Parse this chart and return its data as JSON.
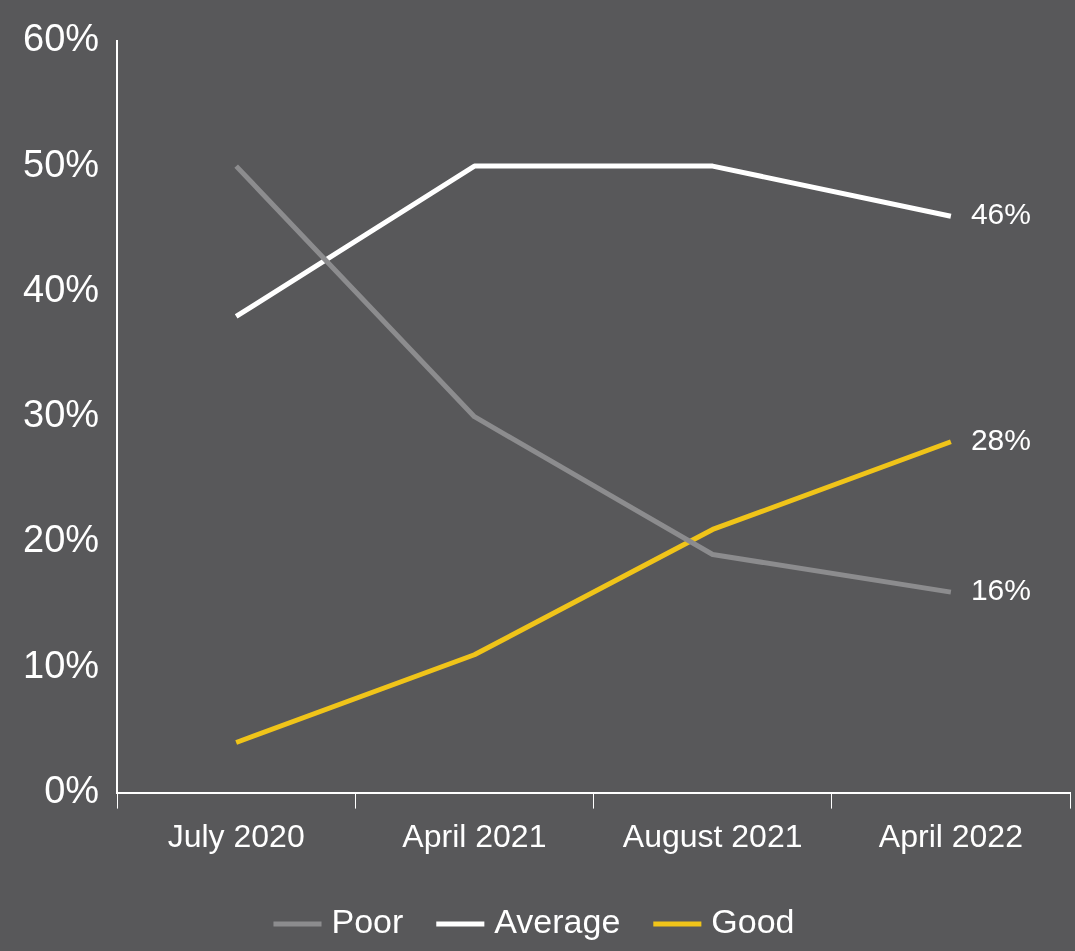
{
  "chart_data": {
    "type": "line",
    "categories": [
      "July 2020",
      "April 2021",
      "August 2021",
      "April 2022"
    ],
    "ylim": [
      0,
      60
    ],
    "yticks": [
      {
        "value": 0,
        "label": "0%"
      },
      {
        "value": 10,
        "label": "10%"
      },
      {
        "value": 20,
        "label": "20%"
      },
      {
        "value": 30,
        "label": "30%"
      },
      {
        "value": 40,
        "label": "40%"
      },
      {
        "value": 50,
        "label": "50%"
      },
      {
        "value": 60,
        "label": "60%"
      }
    ],
    "series": [
      {
        "name": "Poor",
        "color": "#8c8c8e",
        "values": [
          50,
          30,
          19,
          16
        ],
        "value_labels": [
          null,
          null,
          null,
          "16%"
        ]
      },
      {
        "name": "Average",
        "color": "#ffffff",
        "values": [
          38,
          50,
          50,
          46
        ],
        "value_labels": [
          null,
          null,
          null,
          "46%"
        ]
      },
      {
        "name": "Good",
        "color": "#f0c419",
        "values": [
          4,
          11,
          21,
          28
        ],
        "value_labels": [
          null,
          null,
          null,
          "28%"
        ]
      }
    ],
    "legend": "bottom",
    "grid": false,
    "marker": "none",
    "line_style": "solid"
  }
}
